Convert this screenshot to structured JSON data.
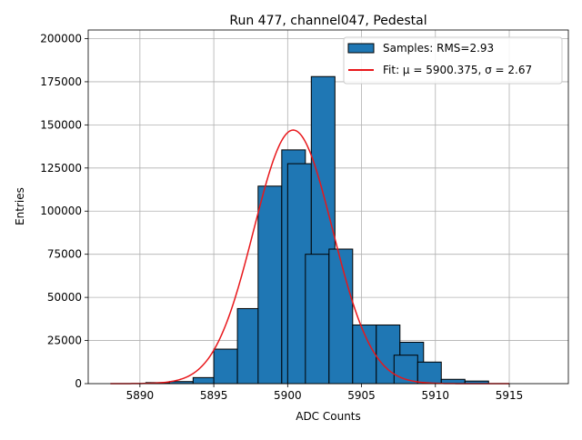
{
  "chart_data": {
    "type": "bar",
    "title": "Run 477, channel047, Pedestal",
    "xlabel": "ADC Counts",
    "ylabel": "Entries",
    "xlim": [
      5886.5,
      5919.0
    ],
    "ylim": [
      0,
      205000
    ],
    "xticks": [
      5890,
      5895,
      5900,
      5905,
      5910,
      5915
    ],
    "yticks": [
      0,
      25000,
      50000,
      75000,
      100000,
      125000,
      150000,
      175000,
      200000
    ],
    "grid": true,
    "legend_position": "top-right",
    "bin_width": 1.6,
    "bins": [
      {
        "left": 5890.4,
        "value": 600
      },
      {
        "left": 5892.0,
        "value": 1200
      },
      {
        "left": 5893.6,
        "value": 3500
      },
      {
        "left": 5895.2,
        "value": 9500
      },
      {
        "left": 5895.0,
        "value": 20000
      },
      {
        "left": 5896.6,
        "value": 43500
      },
      {
        "left": 5898.2,
        "value": 99500
      },
      {
        "left": 5898.0,
        "value": 114500
      },
      {
        "left": 5899.6,
        "value": 135500
      },
      {
        "left": 5900.0,
        "value": 127500
      },
      {
        "left": 5901.6,
        "value": 178000
      },
      {
        "left": 5901.2,
        "value": 75000
      },
      {
        "left": 5902.8,
        "value": 78000
      },
      {
        "left": 5904.4,
        "value": 34000
      },
      {
        "left": 5906.0,
        "value": 34000
      },
      {
        "left": 5907.6,
        "value": 24000
      },
      {
        "left": 5907.2,
        "value": 16500
      },
      {
        "left": 5908.8,
        "value": 12500
      },
      {
        "left": 5910.4,
        "value": 2500
      },
      {
        "left": 5912.0,
        "value": 1500
      }
    ],
    "fit": {
      "mu": 5900.375,
      "sigma": 2.67,
      "amplitude": 147000,
      "x_range": [
        5888,
        5915
      ]
    },
    "series": [
      {
        "name": "Samples: RMS=2.93",
        "type": "histogram",
        "color": "#1f77b4",
        "edgecolor": "#000000"
      },
      {
        "name": "Fit: μ = 5900.375, σ = 2.67",
        "type": "line",
        "color": "#e8171b"
      }
    ]
  }
}
